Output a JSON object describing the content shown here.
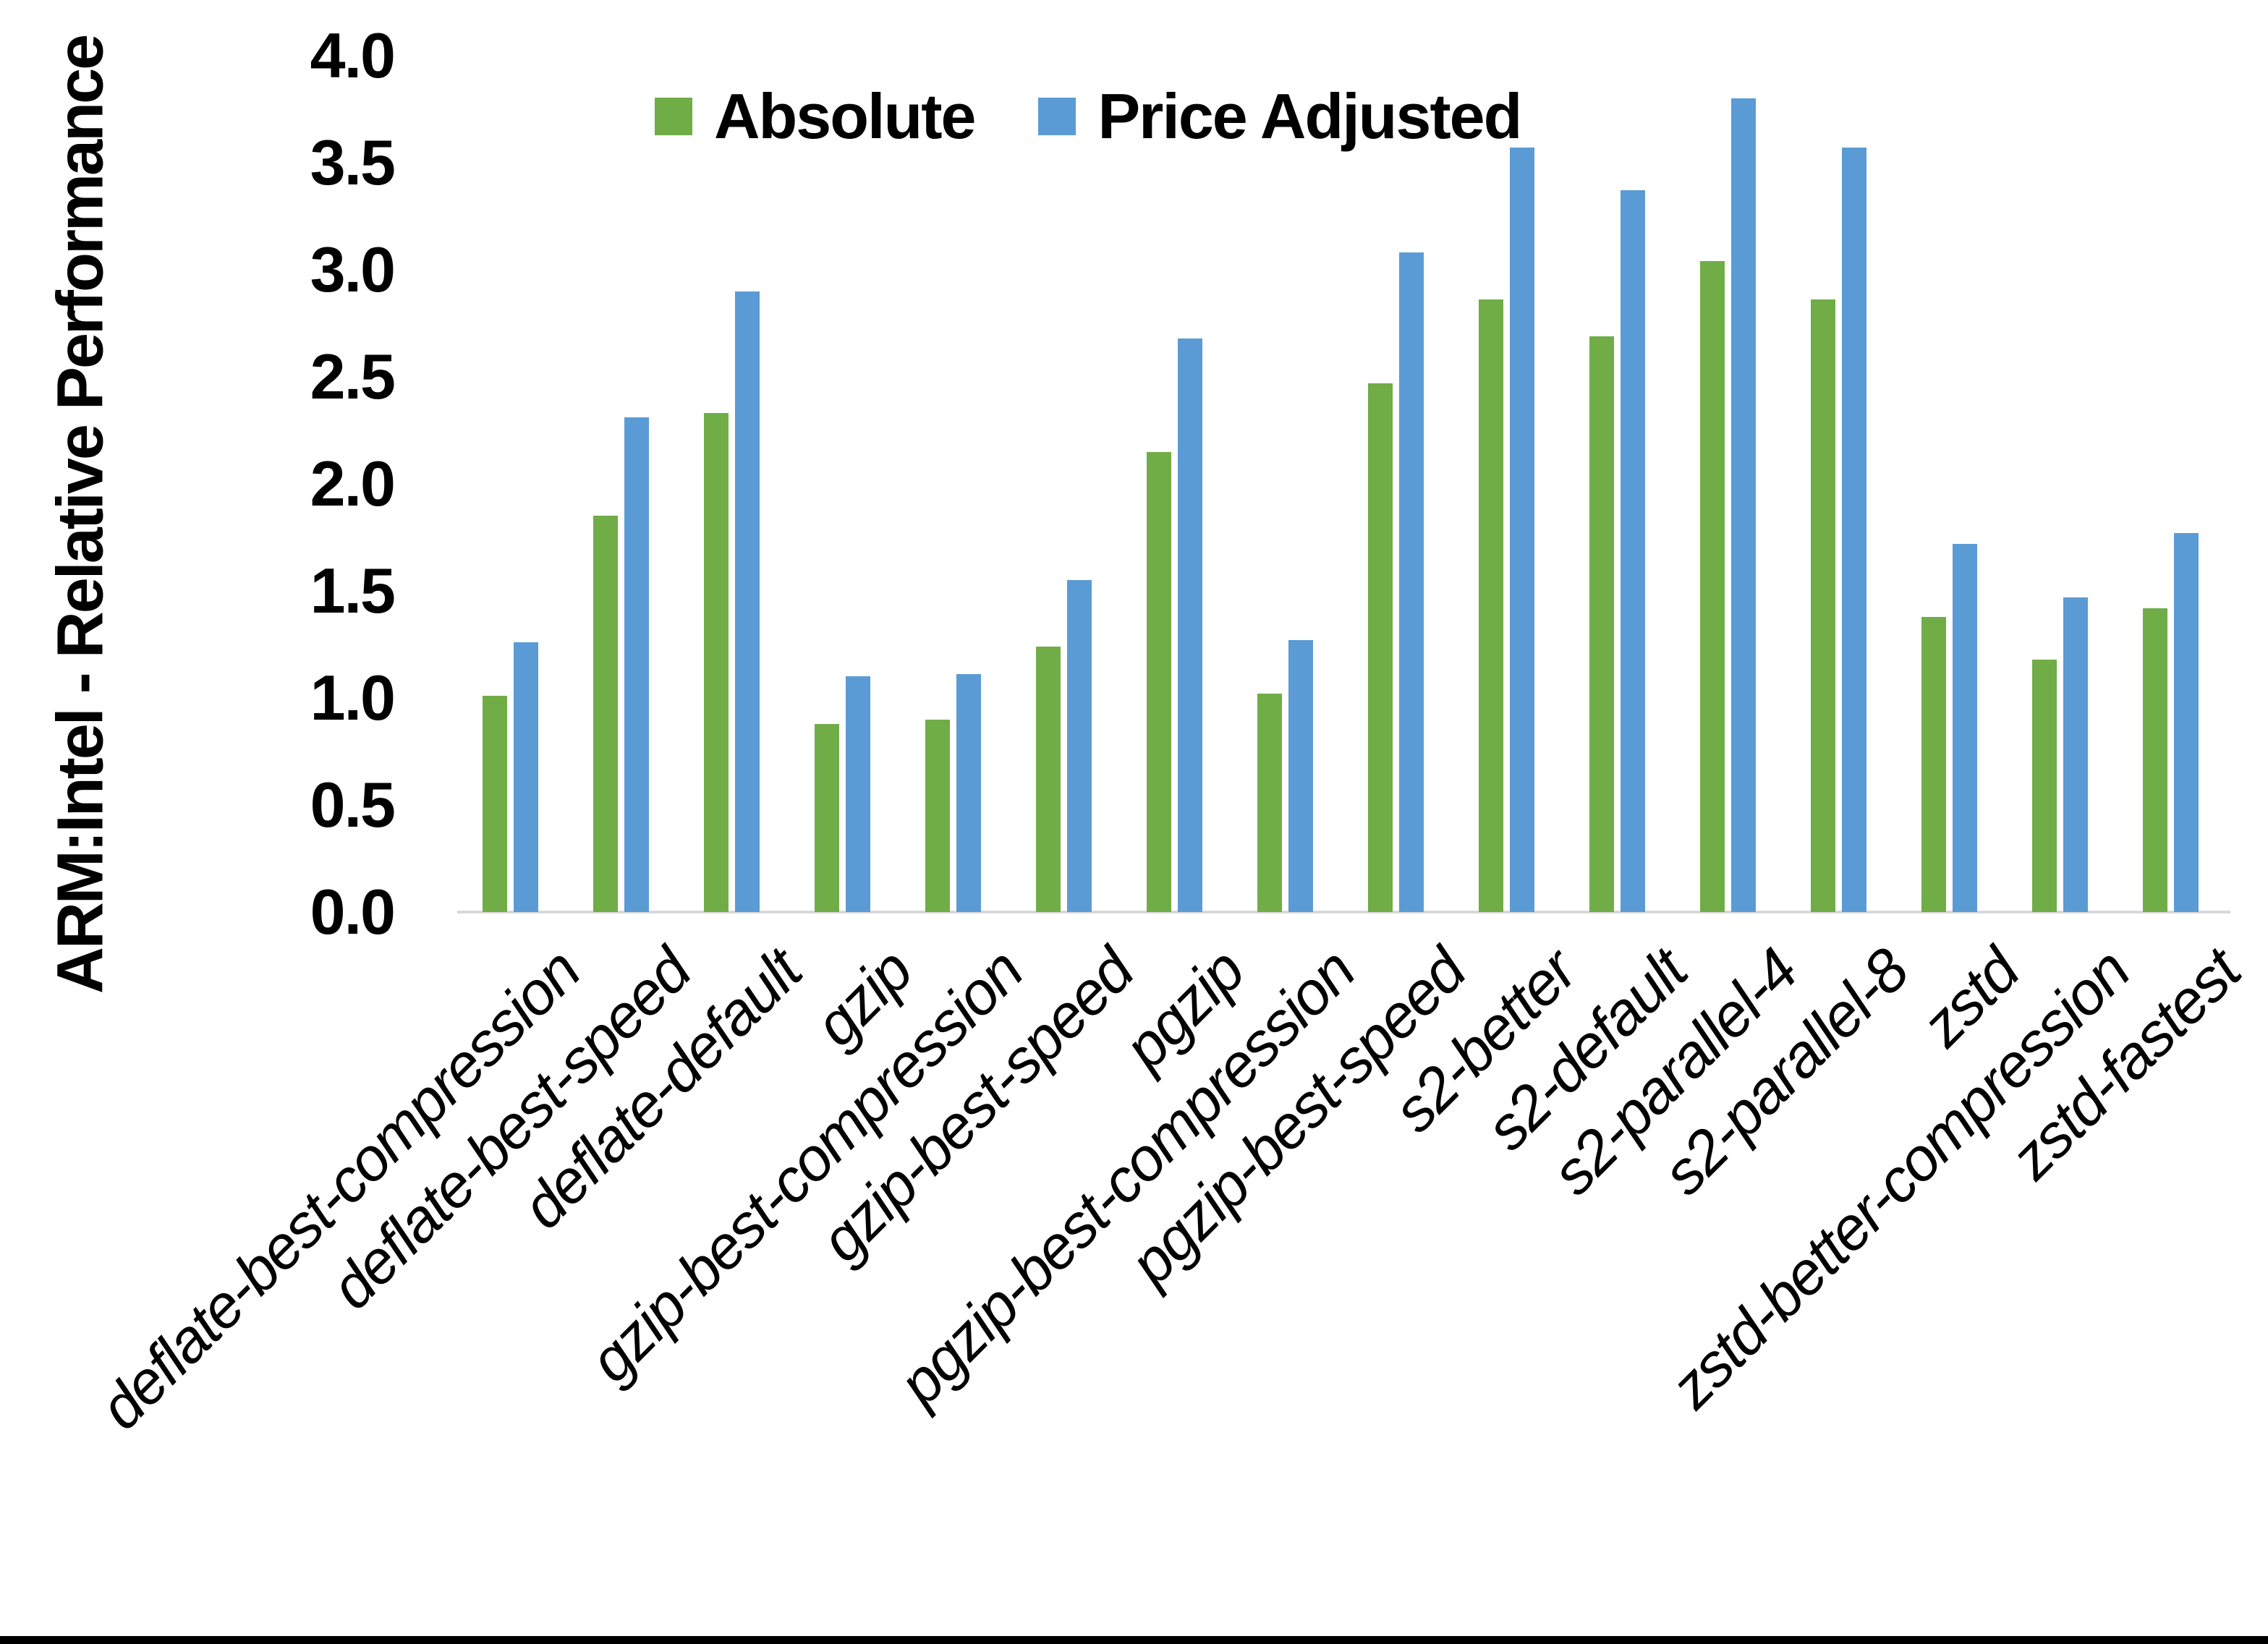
{
  "chart_data": {
    "type": "bar",
    "title": "",
    "xlabel": "",
    "ylabel": "ARM:Intel - Relative Performance",
    "ylim": [
      0.0,
      4.0
    ],
    "ytick_step": 0.5,
    "ytick_labels": [
      "4.0",
      "3.5",
      "3.0",
      "2.5",
      "2.0",
      "1.5",
      "1.0",
      "0.5",
      "0.0"
    ],
    "grid": false,
    "legend_position": "top-center",
    "axis_line_color": "#d9d9d9",
    "background_color": "#ffffff",
    "categories": [
      "deflate-best-compression",
      "deflate-best-speed",
      "deflate-default",
      "gzip",
      "gzip-best-compression",
      "gzip-best-speed",
      "pgzip",
      "pgzip-best-compression",
      "pgzip-best-speed",
      "s2-better",
      "s2-default",
      "s2-parallel-4",
      "s2-parallel-8",
      "zstd",
      "zstd-better-compression",
      "zstd-fastest"
    ],
    "series": [
      {
        "name": "Absolute",
        "color": "#70ad47",
        "values": [
          1.01,
          1.85,
          2.33,
          0.88,
          0.9,
          1.24,
          2.15,
          1.02,
          2.47,
          2.86,
          2.69,
          3.04,
          2.86,
          1.38,
          1.18,
          1.42
        ]
      },
      {
        "name": "Price Adjusted",
        "color": "#5b9bd5",
        "values": [
          1.26,
          2.31,
          2.9,
          1.1,
          1.11,
          1.55,
          2.68,
          1.27,
          3.08,
          3.57,
          3.37,
          3.8,
          3.57,
          1.72,
          1.47,
          1.77
        ]
      }
    ]
  }
}
